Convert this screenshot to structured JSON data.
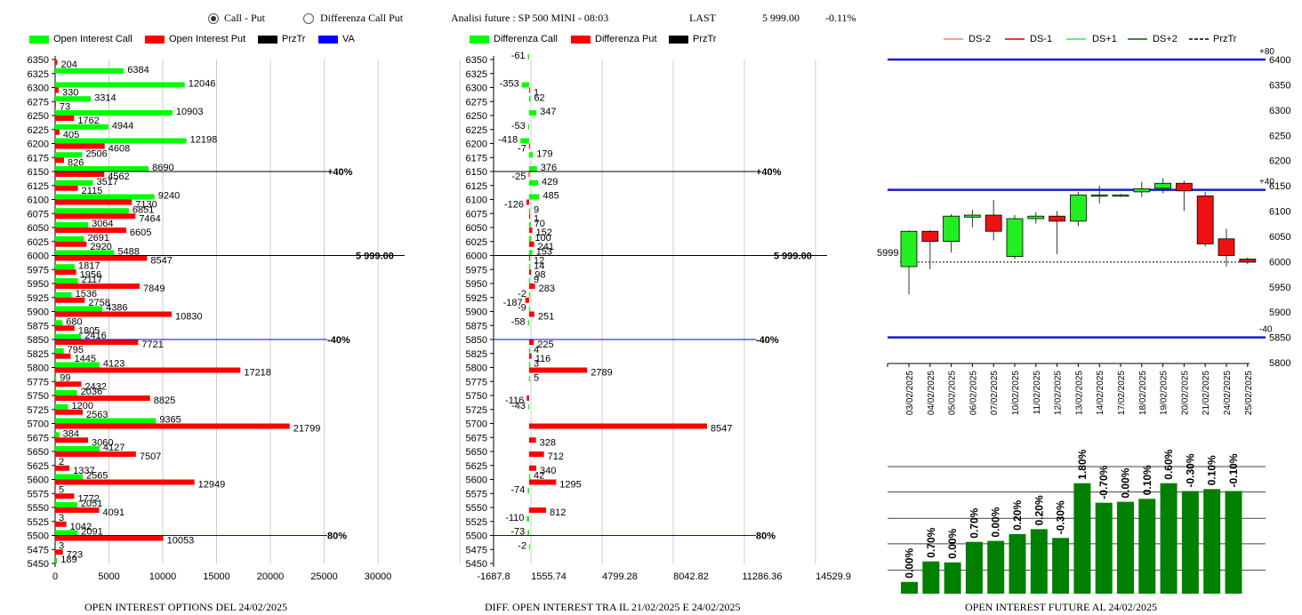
{
  "header": {
    "radio_call_put": "Call - Put",
    "radio_diff": "Differenza Call Put",
    "selected": "call_put",
    "analysis": "Analisi future : SP 500 MINI - 08:03",
    "last_label": "LAST",
    "last_value": "5 999.00",
    "change": "-0.11%"
  },
  "colors": {
    "green": "#00ff00",
    "red": "#ff0000",
    "black": "#000000",
    "blue": "#0000ff",
    "dark_green": "#008000",
    "ds_minus2": "#ff7f50",
    "ds_minus1": "#cc0000",
    "ds_plus1": "#33ee33",
    "ds_plus2": "#006400"
  },
  "legend1": [
    {
      "label": "Open Interest Call",
      "color": "#00ff00"
    },
    {
      "label": "Open Interest Put",
      "color": "#ff0000"
    },
    {
      "label": "PrzTr",
      "color": "#000000"
    },
    {
      "label": "VA",
      "color": "#0000ff"
    }
  ],
  "legend2": [
    {
      "label": "Differenza Call",
      "color": "#00ff00"
    },
    {
      "label": "Differenza Put",
      "color": "#ff0000"
    },
    {
      "label": "PrzTr",
      "color": "#000000"
    }
  ],
  "legend3": [
    {
      "label": "DS-2",
      "color": "#ff7f50",
      "style": "solid"
    },
    {
      "label": "DS-1",
      "color": "#cc0000",
      "style": "solid"
    },
    {
      "label": "DS+1",
      "color": "#33ee33",
      "style": "solid"
    },
    {
      "label": "DS+2",
      "color": "#006400",
      "style": "solid"
    },
    {
      "label": "PrzTr",
      "color": "#000000",
      "style": "dashed"
    }
  ],
  "titles": {
    "oi": "OPEN INTEREST OPTIONS DEL 24/02/2025",
    "diff": "DIFF. OPEN INTEREST TRA IL 21/02/2025 E 24/02/2025",
    "future": "OPEN INTEREST FUTURE AL 24/02/2025"
  },
  "chart_data": [
    {
      "type": "bar",
      "orientation": "horizontal",
      "strikes": [
        6350,
        6325,
        6300,
        6275,
        6250,
        6225,
        6200,
        6175,
        6150,
        6125,
        6100,
        6075,
        6050,
        6025,
        6000,
        5975,
        5950,
        5925,
        5900,
        5875,
        5850,
        5825,
        5800,
        5775,
        5750,
        5725,
        5700,
        5675,
        5650,
        5625,
        5600,
        5575,
        5550,
        5525,
        5500,
        5475,
        5450
      ],
      "series": [
        {
          "name": "Open Interest Call",
          "values": [
            0,
            6384,
            12046,
            3314,
            10903,
            4944,
            12198,
            2506,
            8690,
            3517,
            9240,
            6851,
            3064,
            2691,
            5488,
            1817,
            2117,
            1536,
            4386,
            680,
            2416,
            795,
            4123,
            99,
            2036,
            1200,
            9365,
            384,
            4127,
            2,
            2565,
            5,
            2051,
            3,
            2091,
            3,
            189
          ]
        },
        {
          "name": "Open Interest Put",
          "values": [
            204,
            0,
            330,
            73,
            1762,
            405,
            4608,
            826,
            4562,
            2115,
            7130,
            7464,
            6605,
            2920,
            8547,
            1956,
            7849,
            2758,
            10830,
            1805,
            7721,
            1445,
            17218,
            2432,
            8825,
            2563,
            21799,
            3060,
            7507,
            1337,
            12949,
            1772,
            4091,
            1042,
            10053,
            723,
            0
          ]
        }
      ],
      "xticks": [
        0,
        5000,
        10000,
        15000,
        20000,
        25000,
        30000
      ],
      "xlim": [
        0,
        30000
      ],
      "ylim": [
        5450,
        6350
      ],
      "przTr": {
        "value": 6000,
        "label": "5 999.00"
      },
      "va_lines": [
        {
          "strike": 6150,
          "label": "+40%"
        },
        {
          "strike": 5850,
          "label": "-40%"
        },
        {
          "strike": 5500,
          "label": "80%"
        }
      ]
    },
    {
      "type": "bar",
      "orientation": "horizontal",
      "strikes": [
        6350,
        6325,
        6300,
        6275,
        6250,
        6225,
        6200,
        6175,
        6150,
        6125,
        6100,
        6075,
        6050,
        6025,
        6000,
        5975,
        5950,
        5925,
        5900,
        5875,
        5850,
        5825,
        5800,
        5775,
        5750,
        5725,
        5700,
        5675,
        5650,
        5625,
        5600,
        5575,
        5550,
        5525,
        5500,
        5475,
        5450
      ],
      "series": [
        {
          "name": "Differenza Call",
          "values": [
            -61,
            null,
            -353,
            62,
            347,
            -53,
            -418,
            179,
            376,
            429,
            485,
            9,
            70,
            100,
            153,
            14,
            9,
            -2,
            -9,
            -58,
            null,
            4,
            3,
            5,
            null,
            -43,
            null,
            null,
            null,
            null,
            42,
            -74,
            null,
            -110,
            -73,
            -2,
            null
          ]
        },
        {
          "name": "Differenza Put",
          "values": [
            null,
            null,
            1,
            null,
            null,
            null,
            -7,
            null,
            -25,
            null,
            -126,
            1,
            152,
            241,
            12,
            98,
            283,
            -187,
            251,
            null,
            225,
            116,
            2789,
            null,
            -116,
            null,
            8547,
            328,
            712,
            340,
            1295,
            null,
            812,
            null,
            null,
            null,
            null
          ]
        }
      ],
      "xticks": [
        "-1687.8",
        "1555.74",
        "4799.28",
        "8042.82",
        "11286.36",
        "14529.9"
      ],
      "xlim": [
        -1687.8,
        14529.9
      ],
      "ylim": [
        5450,
        6350
      ],
      "przTr": {
        "value": 6000,
        "label": "5 999.00"
      },
      "va_lines": [
        {
          "strike": 6150,
          "label": "+40%"
        },
        {
          "strike": 5850,
          "label": "-40%"
        },
        {
          "strike": 5500,
          "label": "80%"
        }
      ]
    },
    {
      "type": "candlestick",
      "dates": [
        "03/02/2025",
        "04/02/2025",
        "05/02/2025",
        "06/02/2025",
        "07/02/2025",
        "10/02/2025",
        "11/02/2025",
        "12/02/2025",
        "13/02/2025",
        "14/02/2025",
        "17/02/2025",
        "18/02/2025",
        "19/02/2025",
        "20/02/2025",
        "21/02/2025",
        "24/02/2025",
        "25/02/2025"
      ],
      "open": [
        5990,
        6060,
        6040,
        6088,
        6092,
        6010,
        6085,
        6090,
        6080,
        6132,
        6132,
        6138,
        6145,
        6155,
        6130,
        6045,
        6005
      ],
      "close": [
        6060,
        6040,
        6090,
        6092,
        6060,
        6085,
        6090,
        6080,
        6132,
        6132,
        6132,
        6144,
        6155,
        6140,
        6035,
        6012,
        5999
      ],
      "high": [
        6062,
        6062,
        6094,
        6102,
        6122,
        6092,
        6098,
        6100,
        6138,
        6150,
        6134,
        6158,
        6165,
        6160,
        6138,
        6065,
        6008
      ],
      "low": [
        5935,
        5985,
        6018,
        6068,
        6042,
        6005,
        6075,
        6015,
        6070,
        6115,
        6128,
        6128,
        6135,
        6100,
        6030,
        5990,
        5995
      ],
      "yticks": [
        5800,
        5850,
        5900,
        5950,
        6000,
        6050,
        6100,
        6150,
        6200,
        6250,
        6300,
        6350,
        6400
      ],
      "ylim": [
        5800,
        6408
      ],
      "blue_lines": [
        {
          "value": 6400,
          "label": "+80"
        },
        {
          "value": 6142,
          "label": "+40"
        },
        {
          "value": 5850,
          "label": "-40"
        }
      ],
      "przTr": {
        "value": 5999,
        "label": "5999"
      }
    },
    {
      "type": "bar",
      "values_label": [
        "0.00%",
        "0.70%",
        "0.00%",
        "0.70%",
        "0.00%",
        "0.20%",
        "0.20%",
        "-0.30%",
        "1.80%",
        "-0.70%",
        "0.00%",
        "0.10%",
        "0.60%",
        "-0.30%",
        "0.10%",
        "-0.10%"
      ],
      "heights_rel": [
        0.12,
        0.33,
        0.32,
        0.53,
        0.54,
        0.61,
        0.66,
        0.57,
        1.13,
        0.93,
        0.94,
        0.97,
        1.13,
        1.05,
        1.07,
        1.05
      ],
      "gridlines_rel": [
        0.24,
        0.51,
        0.77,
        1.04,
        1.3
      ]
    }
  ]
}
